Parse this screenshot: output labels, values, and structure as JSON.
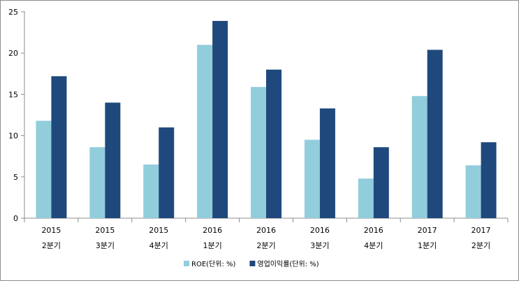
{
  "chart_data": {
    "type": "bar",
    "categories": [
      [
        "2015",
        "2분기"
      ],
      [
        "2015",
        "3분기"
      ],
      [
        "2015",
        "4분기"
      ],
      [
        "2016",
        "1분기"
      ],
      [
        "2016",
        "2분기"
      ],
      [
        "2016",
        "3분기"
      ],
      [
        "2016",
        "4분기"
      ],
      [
        "2017",
        "1분기"
      ],
      [
        "2017",
        "2분기"
      ]
    ],
    "series": [
      {
        "name": "ROE(단위: %)",
        "color": "#92cddc",
        "values": [
          11.8,
          8.6,
          6.5,
          21.0,
          15.9,
          9.5,
          4.8,
          14.8,
          6.4
        ]
      },
      {
        "name": "영업이익률(단위: %)",
        "color": "#1f497d",
        "values": [
          17.2,
          14.0,
          11.0,
          23.9,
          18.0,
          13.3,
          8.6,
          20.4,
          9.2
        ]
      }
    ],
    "ylim": [
      0,
      25
    ],
    "yticks": [
      0,
      5,
      10,
      15,
      20,
      25
    ],
    "legend": "bottom",
    "grid": false,
    "title": "",
    "xlabel": "",
    "ylabel": ""
  }
}
